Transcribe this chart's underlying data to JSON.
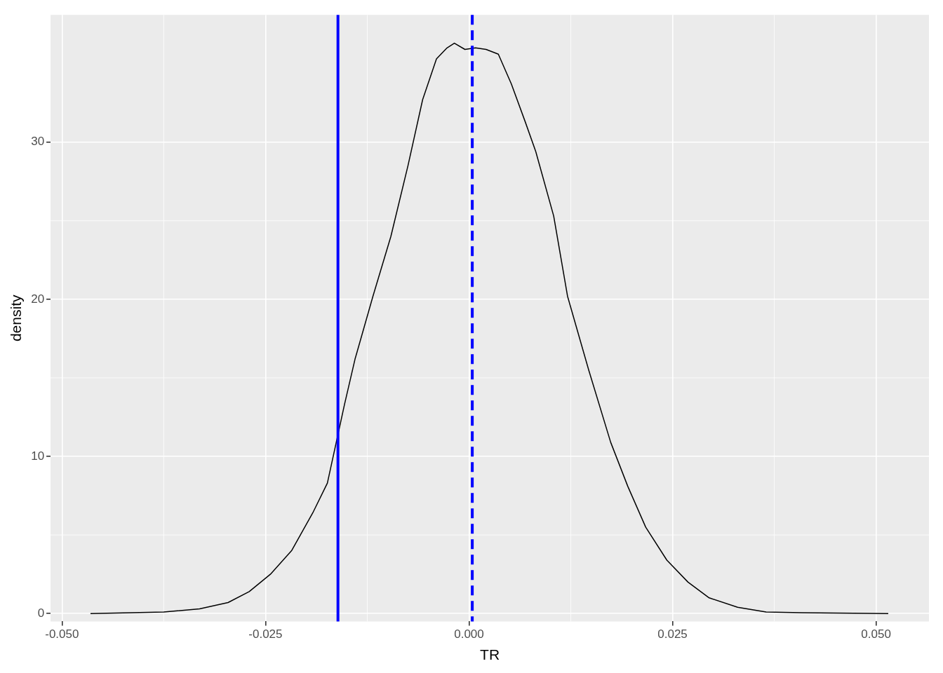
{
  "chart_data": {
    "type": "line",
    "xlabel": "TR",
    "ylabel": "density",
    "x": [
      -0.0465,
      -0.0375,
      -0.0331,
      -0.0296,
      -0.027,
      -0.0244,
      -0.0218,
      -0.0192,
      -0.0174,
      -0.0153,
      -0.014,
      -0.0118,
      -0.0096,
      -0.0075,
      -0.0057,
      -0.004,
      -0.0027,
      -0.0018,
      -0.0005,
      0.0008,
      0.0021,
      0.0036,
      0.0052,
      0.0069,
      0.0082,
      0.0104,
      0.0121,
      0.0147,
      0.0174,
      0.0195,
      0.0217,
      0.0243,
      0.0269,
      0.0295,
      0.033,
      0.0365,
      0.0409,
      0.0515
    ],
    "series": [
      {
        "color": "#000000",
        "values": [
          0,
          0.1,
          0.3,
          0.7,
          1.4,
          2.5,
          4.0,
          6.4,
          8.3,
          13.3,
          16.2,
          20.2,
          24.0,
          28.5,
          32.7,
          35.3,
          36.0,
          36.3,
          35.9,
          36.0,
          35.9,
          35.6,
          33.7,
          31.3,
          29.4,
          25.3,
          20.2,
          15.5,
          10.9,
          8.1,
          5.5,
          3.4,
          2.0,
          1.0,
          0.4,
          0.1,
          0.05,
          0
        ]
      }
    ],
    "xlim": [
      -0.0514,
      0.0565
    ],
    "ylim": [
      -0.5,
      38.1
    ],
    "xticks": [
      {
        "value": -0.05,
        "label": "-0.050"
      },
      {
        "value": -0.025,
        "label": "-0.025"
      },
      {
        "value": 0,
        "label": "0.000"
      },
      0.025,
      {
        "value": 0.05,
        "label": "0.050"
      }
    ],
    "yticks": [
      0,
      10,
      20,
      30
    ],
    "grid": true,
    "marker": "none",
    "line_style": "solid",
    "legend": false,
    "ref_lines": [
      {
        "axis": "x",
        "value": -0.0161,
        "color": "#0000ff",
        "line_style": "solid"
      },
      {
        "axis": "x",
        "value": 0.0004,
        "color": "#0000ff",
        "line_style": "dashed"
      }
    ]
  }
}
